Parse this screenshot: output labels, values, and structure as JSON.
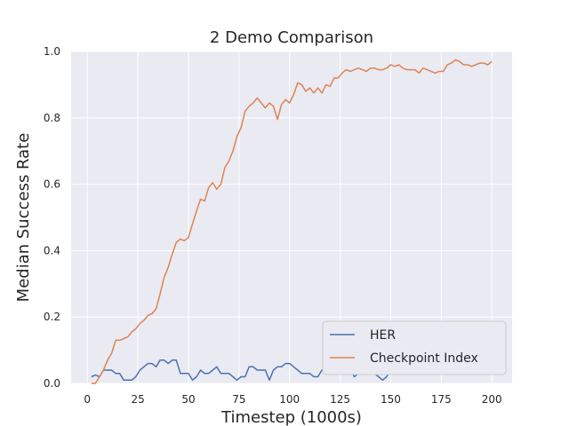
{
  "chart_data": {
    "type": "line",
    "title": "2 Demo Comparison",
    "xlabel": "Timestep (1000s)",
    "ylabel": "Median Success Rate",
    "xlim": [
      -8,
      210
    ],
    "ylim": [
      0.0,
      1.0
    ],
    "xticks": [
      "0",
      "25",
      "50",
      "75",
      "100",
      "125",
      "150",
      "175",
      "200"
    ],
    "yticks": [
      "0.0",
      "0.2",
      "0.4",
      "0.6",
      "0.8",
      "1.0"
    ],
    "grid": true,
    "legend_position": "bottom-right",
    "colors": {
      "background": "#eaeaf2",
      "grid": "#ffffff",
      "HER": "#4c72b0",
      "Checkpoint Index": "#dd8452"
    },
    "series": [
      {
        "name": "HER",
        "x": [
          2,
          4,
          6,
          8,
          10,
          12,
          14,
          16,
          18,
          20,
          22,
          24,
          26,
          28,
          30,
          32,
          34,
          36,
          38,
          40,
          42,
          44,
          46,
          48,
          50,
          52,
          54,
          56,
          58,
          60,
          62,
          64,
          66,
          68,
          70,
          72,
          74,
          76,
          78,
          80,
          82,
          84,
          86,
          88,
          90,
          92,
          94,
          96,
          98,
          100,
          102,
          104,
          106,
          108,
          110,
          112,
          114,
          116,
          118,
          120,
          122,
          124,
          126,
          128,
          130,
          132,
          134,
          136,
          138,
          140,
          142,
          144,
          146,
          148,
          150,
          152,
          154,
          156,
          158,
          160,
          162,
          164,
          166,
          168,
          170,
          172,
          174,
          176,
          178,
          180,
          182,
          184,
          186,
          188,
          190,
          192,
          194,
          196,
          198,
          200
        ],
        "values": [
          0.02,
          0.025,
          0.02,
          0.04,
          0.04,
          0.04,
          0.03,
          0.03,
          0.01,
          0.01,
          0.01,
          0.02,
          0.04,
          0.05,
          0.06,
          0.06,
          0.05,
          0.07,
          0.07,
          0.06,
          0.07,
          0.07,
          0.03,
          0.03,
          0.03,
          0.01,
          0.02,
          0.04,
          0.03,
          0.03,
          0.04,
          0.05,
          0.03,
          0.03,
          0.03,
          0.02,
          0.01,
          0.02,
          0.02,
          0.05,
          0.05,
          0.04,
          0.04,
          0.04,
          0.01,
          0.04,
          0.05,
          0.05,
          0.06,
          0.06,
          0.05,
          0.04,
          0.03,
          0.03,
          0.03,
          0.02,
          0.02,
          0.04,
          0.04,
          0.04,
          0.06,
          0.07,
          0.05,
          0.04,
          0.04,
          0.02,
          0.03,
          0.04,
          0.04,
          0.03,
          0.03,
          0.02,
          0.01,
          0.02,
          0.04,
          0.06,
          0.08,
          0.09,
          0.1,
          0.11,
          0.12,
          0.11,
          0.1,
          0.1,
          0.08,
          0.07,
          0.06,
          0.05,
          0.04,
          0.04,
          0.05,
          0.04,
          0.04,
          0.03,
          0.04,
          0.04,
          0.05,
          0.06,
          0.07,
          0.07
        ]
      },
      {
        "name": "Checkpoint Index",
        "x": [
          2,
          4,
          6,
          8,
          10,
          12,
          14,
          16,
          18,
          20,
          22,
          24,
          26,
          28,
          30,
          32,
          34,
          36,
          38,
          40,
          42,
          44,
          46,
          48,
          50,
          52,
          54,
          56,
          58,
          60,
          62,
          64,
          66,
          68,
          70,
          72,
          74,
          76,
          78,
          80,
          82,
          84,
          86,
          88,
          90,
          92,
          94,
          96,
          98,
          100,
          102,
          104,
          106,
          108,
          110,
          112,
          114,
          116,
          118,
          120,
          122,
          124,
          126,
          128,
          130,
          132,
          134,
          136,
          138,
          140,
          142,
          144,
          146,
          148,
          150,
          152,
          154,
          156,
          158,
          160,
          162,
          164,
          166,
          168,
          170,
          172,
          174,
          176,
          178,
          180,
          182,
          184,
          186,
          188,
          190,
          192,
          194,
          196,
          198,
          200
        ],
        "values": [
          0.0,
          0.0,
          0.02,
          0.04,
          0.07,
          0.09,
          0.13,
          0.13,
          0.135,
          0.14,
          0.155,
          0.165,
          0.18,
          0.19,
          0.205,
          0.21,
          0.225,
          0.27,
          0.32,
          0.35,
          0.39,
          0.425,
          0.435,
          0.43,
          0.44,
          0.48,
          0.52,
          0.555,
          0.55,
          0.59,
          0.605,
          0.585,
          0.6,
          0.65,
          0.67,
          0.7,
          0.745,
          0.77,
          0.82,
          0.835,
          0.845,
          0.86,
          0.845,
          0.83,
          0.845,
          0.835,
          0.795,
          0.84,
          0.855,
          0.845,
          0.87,
          0.905,
          0.9,
          0.88,
          0.89,
          0.875,
          0.89,
          0.875,
          0.9,
          0.895,
          0.92,
          0.92,
          0.935,
          0.945,
          0.94,
          0.945,
          0.95,
          0.945,
          0.94,
          0.95,
          0.95,
          0.945,
          0.945,
          0.95,
          0.96,
          0.955,
          0.96,
          0.95,
          0.945,
          0.945,
          0.945,
          0.935,
          0.95,
          0.945,
          0.94,
          0.935,
          0.94,
          0.94,
          0.96,
          0.965,
          0.975,
          0.97,
          0.96,
          0.96,
          0.955,
          0.96,
          0.965,
          0.965,
          0.96,
          0.97
        ]
      }
    ]
  }
}
